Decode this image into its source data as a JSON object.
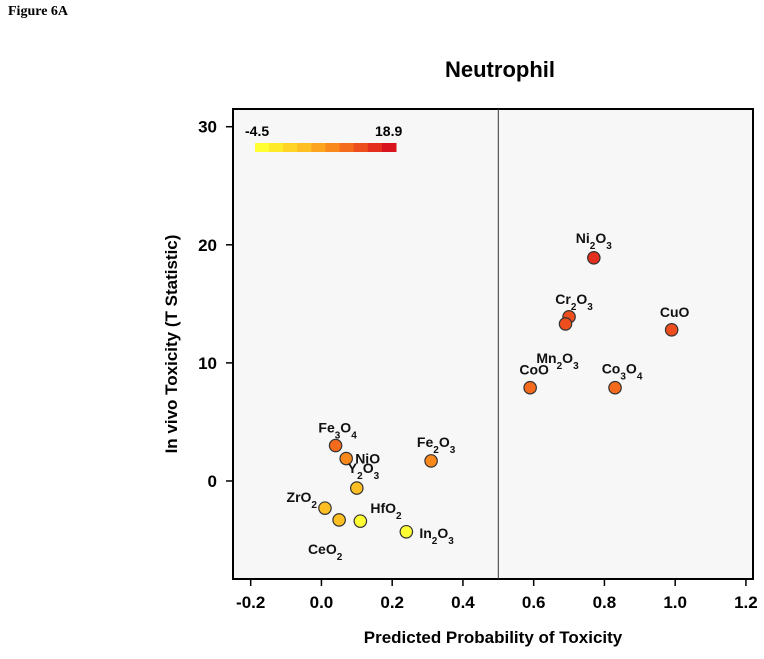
{
  "figure_label": "Figure 6A",
  "chart_data": {
    "type": "scatter",
    "title": "Neutrophil",
    "xlabel": "Predicted Probability of Toxicity",
    "ylabel": "In vivo Toxicity (T Statistic)",
    "xlim": [
      -0.25,
      1.22
    ],
    "ylim": [
      -8.3,
      31.5
    ],
    "xticks": [
      -0.2,
      0.0,
      0.2,
      0.4,
      0.6,
      0.8,
      1.0,
      1.2
    ],
    "xtick_labels": [
      "-0.2",
      "0.0",
      "0.2",
      "0.4",
      "0.6",
      "0.8",
      "1.0",
      "1.2"
    ],
    "yticks": [
      0,
      10,
      20,
      30
    ],
    "ytick_labels": [
      "0",
      "10",
      "20",
      "30"
    ],
    "threshold_x": 0.5,
    "colorbar": {
      "min_label": "-4.5",
      "max_label": "18.9",
      "min": -4.5,
      "max": 18.9,
      "colors": [
        "#ffff33",
        "#ffea2a",
        "#ffd426",
        "#fdbf22",
        "#fca31f",
        "#f9881d",
        "#f56b1d",
        "#ee4d1e",
        "#e42f1e",
        "#d8141e"
      ]
    },
    "marker_edge_color": "#333333",
    "panel_bg": "#f7f7f7",
    "points": [
      {
        "base": "Ni",
        "sub1": "2",
        "ox": "O",
        "sub2": "3",
        "x": 0.77,
        "y": 18.9,
        "color": "#e42f1e"
      },
      {
        "base": "Cr",
        "sub1": "2",
        "ox": "O",
        "sub2": "3",
        "x": 0.7,
        "y": 13.9,
        "color": "#ee4d1e"
      },
      {
        "base": "Mn",
        "sub1": "2",
        "ox": "O",
        "sub2": "3",
        "x": 0.69,
        "y": 13.3,
        "color": "#ee4d1e"
      },
      {
        "base": "CuO",
        "sub1": "",
        "ox": "",
        "sub2": "",
        "x": 0.99,
        "y": 12.8,
        "color": "#ee4d1e"
      },
      {
        "base": "CoO",
        "sub1": "",
        "ox": "",
        "sub2": "",
        "x": 0.59,
        "y": 7.9,
        "color": "#f56b1d"
      },
      {
        "base": "Co",
        "sub1": "3",
        "ox": "O",
        "sub2": "4",
        "x": 0.83,
        "y": 7.9,
        "color": "#f56b1d"
      },
      {
        "base": "Fe",
        "sub1": "3",
        "ox": "O",
        "sub2": "4",
        "x": 0.04,
        "y": 3.0,
        "color": "#f56b1d"
      },
      {
        "base": "NiO",
        "sub1": "",
        "ox": "",
        "sub2": "",
        "x": 0.07,
        "y": 1.9,
        "color": "#f9881d"
      },
      {
        "base": "Fe",
        "sub1": "2",
        "ox": "O",
        "sub2": "3",
        "x": 0.31,
        "y": 1.7,
        "color": "#f9881d"
      },
      {
        "base": "Y",
        "sub1": "2",
        "ox": "O",
        "sub2": "3",
        "x": 0.1,
        "y": -0.6,
        "color": "#fdbf22"
      },
      {
        "base": "ZrO",
        "sub1": "2",
        "ox": "",
        "sub2": "",
        "x": 0.01,
        "y": -2.3,
        "color": "#fdbf22"
      },
      {
        "base": "CeO",
        "sub1": "2",
        "ox": "",
        "sub2": "",
        "x": 0.05,
        "y": -3.3,
        "color": "#fdbf22"
      },
      {
        "base": "HfO",
        "sub1": "2",
        "ox": "",
        "sub2": "",
        "x": 0.11,
        "y": -3.4,
        "color": "#ffff33"
      },
      {
        "base": "In",
        "sub1": "2",
        "ox": "O",
        "sub2": "3",
        "x": 0.24,
        "y": -4.3,
        "color": "#ffff33"
      }
    ]
  }
}
